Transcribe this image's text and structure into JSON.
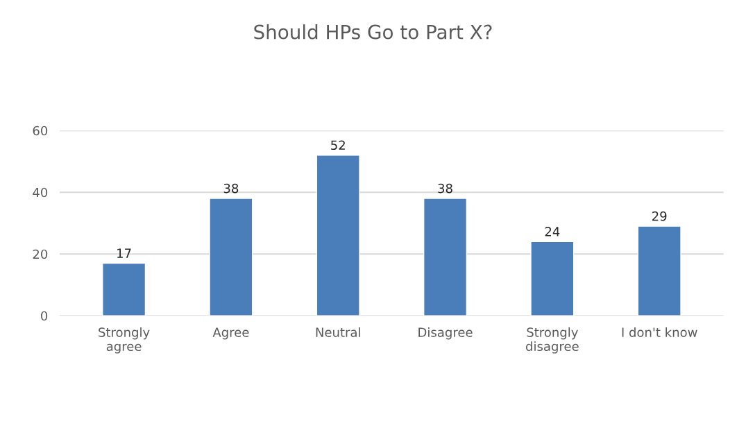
{
  "chart_data": {
    "type": "bar",
    "title": "Should HPs Go to Part X?",
    "categories": [
      "Strongly\nagree",
      "Agree",
      "Neutral",
      "Disagree",
      "Strongly\ndisagree",
      "I don't know"
    ],
    "values": [
      17,
      38,
      52,
      38,
      24,
      29
    ],
    "color": "#4a7ebb",
    "ylim": [
      0,
      60
    ],
    "yticks": [
      0,
      20,
      40,
      60
    ],
    "grid": "y",
    "data_labels": true,
    "legend": false
  }
}
